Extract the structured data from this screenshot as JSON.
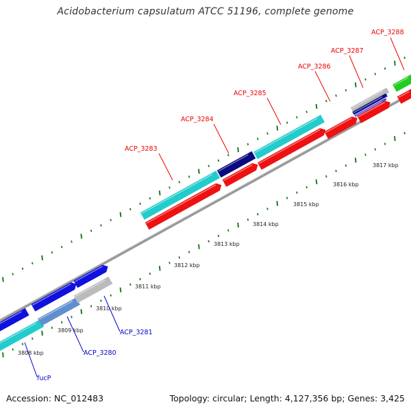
{
  "title": "Acidobacterium capsulatum ATCC 51196, complete genome",
  "footer": {
    "accession": "Accession: NC_012483",
    "summary": "Topology: circular; Length: 4,127,356 bp; Genes: 3,425"
  },
  "colors": {
    "forward_cds": "#22cccc",
    "reverse_cds": "#ee1111",
    "dark_blue_cds": "#0a0a80",
    "blue_cds": "#1111dd",
    "grey_cds": "#bbbbbb",
    "green_cds": "#22cc22",
    "backbone": "#888888",
    "tick": "#227722",
    "label_red": "#ee0000",
    "label_blue": "#0000cc"
  },
  "tick_labels": [
    "3808 kbp",
    "3809 kbp",
    "3810 kbp",
    "3811 kbp",
    "3812 kbp",
    "3813 kbp",
    "3814 kbp",
    "3815 kbp",
    "3816 kbp",
    "3817 kbp"
  ],
  "gene_labels_top": [
    "ACP_3283",
    "ACP_3284",
    "ACP_3285",
    "ACP_3286",
    "ACP_3287",
    "ACP_3288"
  ],
  "gene_labels_bottom": [
    "ACP_3281",
    "ACP_3280",
    "fucP"
  ]
}
